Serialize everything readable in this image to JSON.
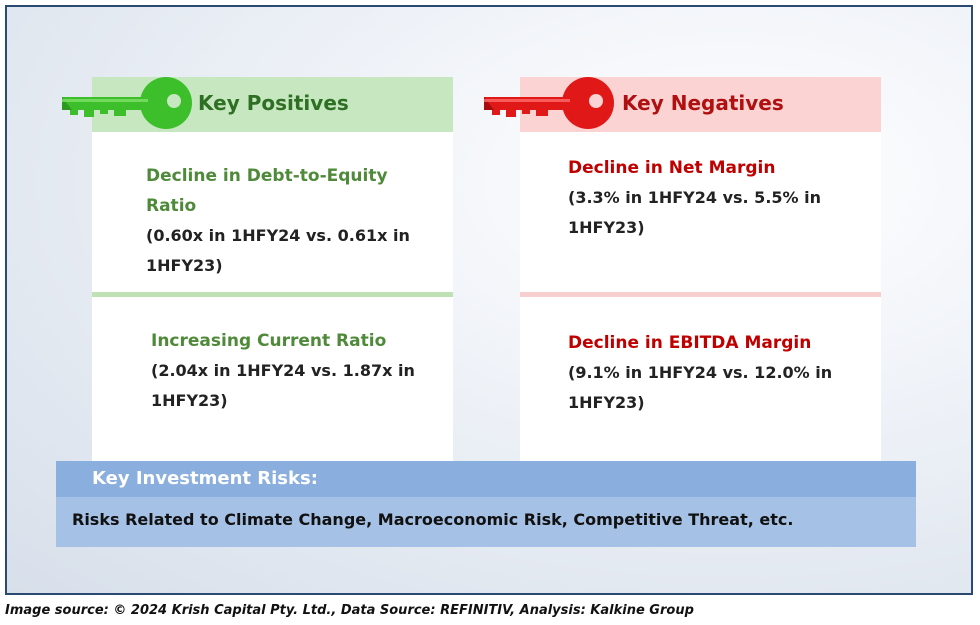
{
  "positives": {
    "title": "Key Positives",
    "color": "#2e6f24",
    "items": [
      {
        "title_line1": "Decline in Debt-to-Equity",
        "title_line2": "Ratio",
        "detail_line1": "(0.60x in 1HFY24 vs. 0.61x in",
        "detail_line2": "1HFY23)"
      },
      {
        "title_line1": "Increasing Current Ratio",
        "detail_line1": "(2.04x in 1HFY24 vs. 1.87x in",
        "detail_line2": "1HFY23)"
      }
    ]
  },
  "negatives": {
    "title": "Key Negatives",
    "color": "#c00000",
    "items": [
      {
        "title_line1": "Decline in Net Margin",
        "detail_line1": "(3.3% in 1HFY24 vs. 5.5% in",
        "detail_line2": "1HFY23)"
      },
      {
        "title_line1": "Decline in EBITDA Margin",
        "detail_line1": "(9.1% in 1HFY24 vs. 12.0% in",
        "detail_line2": "1HFY23)"
      }
    ]
  },
  "risks": {
    "title": "Key Investment Risks:",
    "text": "Risks Related to Climate Change, Macroeconomic Risk, Competitive Threat, etc."
  },
  "source": "Image source: © 2024 Krish Capital Pty. Ltd., Data Source: REFINITIV, Analysis: Kalkine Group",
  "icons": [
    "green-key-icon",
    "red-key-icon"
  ]
}
